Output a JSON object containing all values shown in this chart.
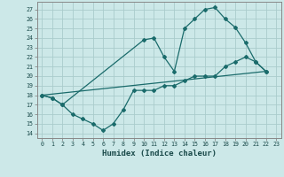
{
  "xlabel": "Humidex (Indice chaleur)",
  "bg_color": "#cce8e8",
  "grid_color": "#aacccc",
  "line_color": "#1a6b6b",
  "xlim": [
    -0.5,
    23.5
  ],
  "ylim": [
    13.5,
    27.8
  ],
  "yticks": [
    14,
    15,
    16,
    17,
    18,
    19,
    20,
    21,
    22,
    23,
    24,
    25,
    26,
    27
  ],
  "xticks": [
    0,
    1,
    2,
    3,
    4,
    5,
    6,
    7,
    8,
    9,
    10,
    11,
    12,
    13,
    14,
    15,
    16,
    17,
    18,
    19,
    20,
    21,
    22,
    23
  ],
  "line1_x": [
    0,
    1,
    2,
    3,
    4,
    5,
    6,
    7,
    8,
    9,
    10,
    11,
    12,
    13,
    14,
    15,
    16,
    17,
    18,
    19,
    20,
    21,
    22
  ],
  "line1_y": [
    18,
    17.7,
    17.0,
    16.0,
    15.5,
    15.0,
    14.3,
    15.0,
    16.5,
    18.5,
    18.5,
    18.5,
    19.0,
    19.0,
    19.5,
    20.0,
    20.0,
    20.0,
    21.0,
    21.5,
    22.0,
    21.5,
    20.5
  ],
  "line2_x": [
    0,
    1,
    2,
    10,
    11,
    12,
    13,
    14,
    15,
    16,
    17,
    18,
    19,
    20,
    21,
    22
  ],
  "line2_y": [
    18,
    17.7,
    17.0,
    23.8,
    24.0,
    22.0,
    20.5,
    25.0,
    26.0,
    27.0,
    27.2,
    26.0,
    25.1,
    23.5,
    21.5,
    20.5
  ],
  "line3_x": [
    0,
    22
  ],
  "line3_y": [
    18.0,
    20.5
  ]
}
